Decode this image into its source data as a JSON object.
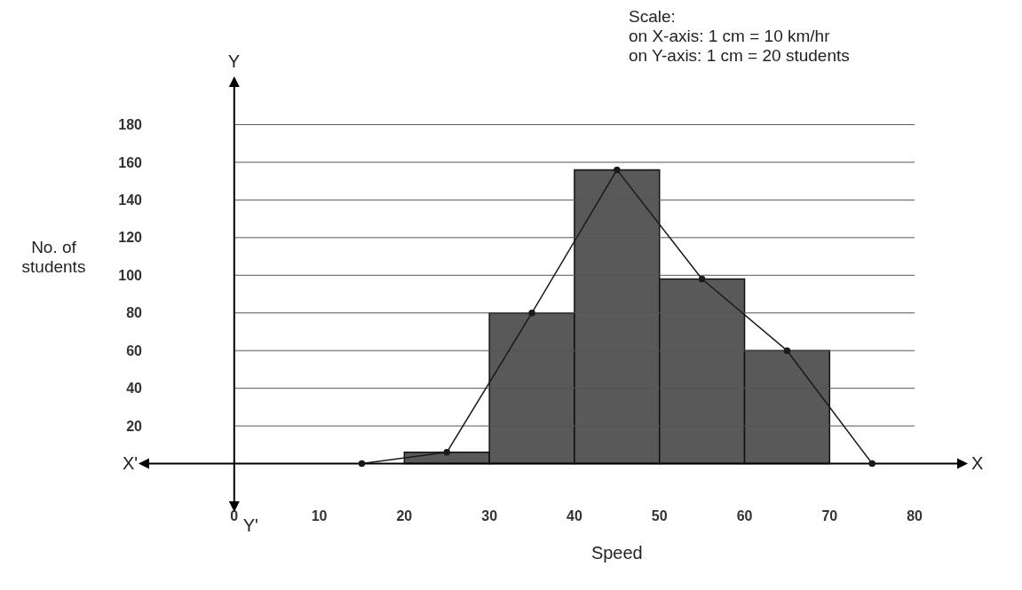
{
  "chart_data": {
    "type": "histogram",
    "xlabel": "Speed",
    "ylabel": "No. of students",
    "bins": [
      20,
      30,
      40,
      50,
      60,
      70
    ],
    "values": [
      6,
      80,
      156,
      98,
      60
    ],
    "color": "#595959",
    "series": [
      {
        "type": "line",
        "x": [
          15,
          25,
          35,
          45,
          55,
          65,
          75
        ],
        "values": [
          0,
          6,
          80,
          156,
          98,
          60,
          0
        ],
        "color": "#1a1a1a",
        "marker": "circle"
      }
    ],
    "xlim": [
      -10,
      85
    ],
    "ylim": [
      -20,
      200
    ],
    "xticks": [
      0,
      10,
      20,
      30,
      40,
      50,
      60,
      70,
      80
    ],
    "yticks": [
      20,
      40,
      60,
      80,
      100,
      120,
      140,
      160,
      180
    ],
    "grid": "y",
    "annotations": [
      "Scale:",
      "on X-axis: 1 cm = 10 km/hr",
      "on Y-axis: 1 cm = 20 students",
      "X'",
      "X",
      "Y",
      "Y'"
    ]
  }
}
